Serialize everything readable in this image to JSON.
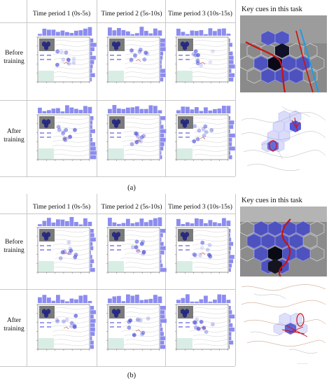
{
  "panel_a": {
    "columns": [
      "Time period 1 (0s-5s)",
      "Time period 2 (5s-10s)",
      "Time period 3 (10s-15s)"
    ],
    "rows": [
      {
        "label": [
          "Before",
          "training"
        ]
      },
      {
        "label": [
          "After",
          "training"
        ]
      }
    ],
    "cue_title": "Key cues in this task",
    "caption": "(a)"
  },
  "panel_b": {
    "columns": [
      "Time period 1 (0s-5s)",
      "Time period 2 (5s-10s)",
      "Time period 3 (10s-15s)"
    ],
    "rows": [
      {
        "label": [
          "Before",
          "training"
        ]
      },
      {
        "label": [
          "After",
          "training"
        ]
      }
    ],
    "cue_title": "Key cues in this task",
    "caption": "(b)"
  },
  "colors": {
    "hex_blue": "#4b4fd8",
    "hist_blue": "#8c8cf0",
    "red_curve": "#cc1111",
    "cyan_curve": "#1e9be6"
  }
}
